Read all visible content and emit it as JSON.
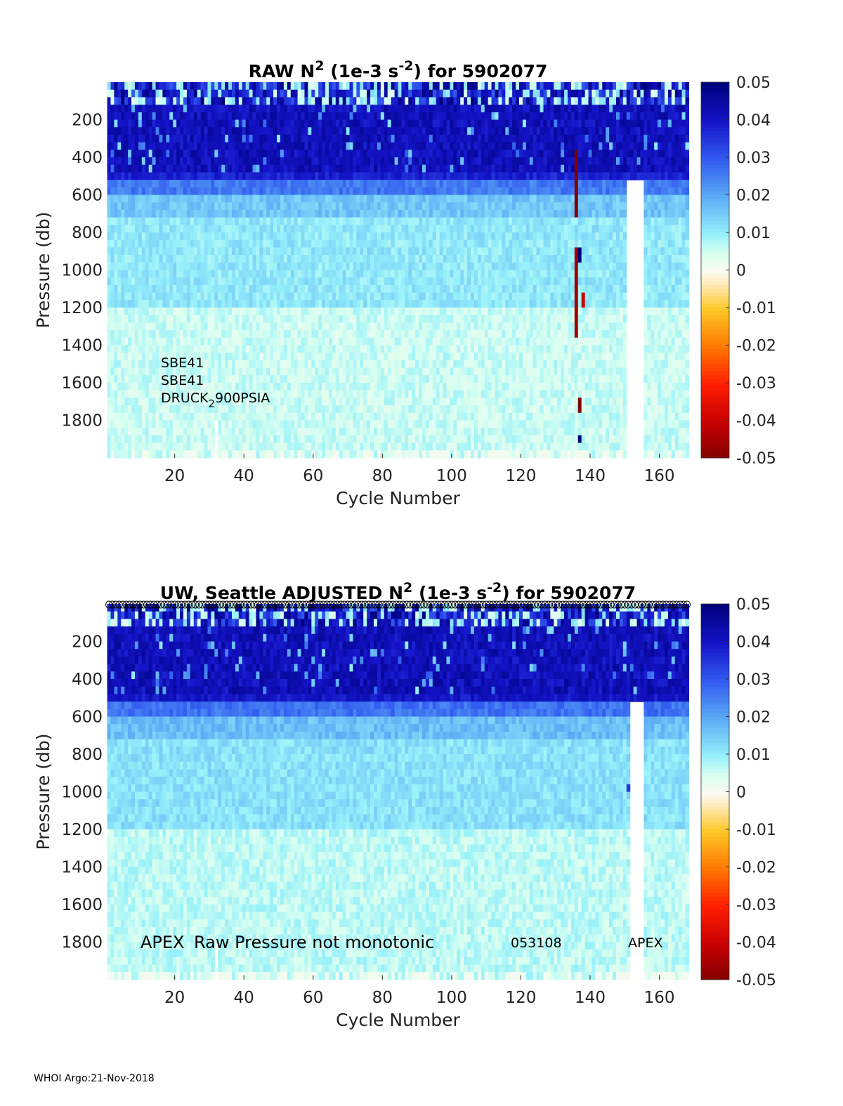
{
  "footer": "WHOI Argo:21-Nov-2018",
  "chart_data": [
    {
      "type": "heatmap",
      "title_main": "RAW N",
      "title_sup1": "2",
      "title_mid": " (1e-3 s",
      "title_sup2": "-2",
      "title_end": ") for 5902077",
      "title_prefix": "",
      "xlabel": "Cycle Number",
      "ylabel": "Pressure (db)",
      "xlim": [
        1,
        168
      ],
      "ylim": [
        2000,
        0
      ],
      "xticks": [
        20,
        40,
        60,
        80,
        100,
        120,
        140,
        160
      ],
      "yticks": [
        200,
        400,
        600,
        800,
        1000,
        1200,
        1400,
        1600,
        1800
      ],
      "clim": [
        -0.05,
        0.05
      ],
      "colorbar_ticks": [
        "0.05",
        "0.04",
        "0.03",
        "0.02",
        "0.01",
        "0",
        "-0.01",
        "-0.02",
        "-0.03",
        "-0.04",
        "-0.05"
      ],
      "depth_bands": [
        {
          "from": 0,
          "to": 90,
          "value": 0.03
        },
        {
          "from": 90,
          "to": 450,
          "value": 0.046
        },
        {
          "from": 450,
          "to": 520,
          "value": 0.038
        },
        {
          "from": 520,
          "to": 600,
          "value": 0.026
        },
        {
          "from": 600,
          "to": 700,
          "value": 0.016
        },
        {
          "from": 700,
          "to": 1200,
          "value": 0.011
        },
        {
          "from": 1200,
          "to": 2000,
          "value": 0.006
        }
      ],
      "missing": [
        {
          "cycles": [
            151,
            155
          ],
          "from": 500,
          "to": 2000
        },
        {
          "cycles": [
            32,
            32
          ],
          "from": 1800,
          "to": 2000
        }
      ],
      "anomalies": [
        {
          "cycle": 136,
          "from": 350,
          "to": 700,
          "value": -0.05
        },
        {
          "cycle": 136,
          "from": 850,
          "to": 1350,
          "value": -0.045
        },
        {
          "cycle": 136,
          "from": 950,
          "to": 1050,
          "value": 0.05
        },
        {
          "cycle": 137,
          "from": 1650,
          "to": 1750,
          "value": -0.05
        },
        {
          "cycle": 137,
          "from": 1850,
          "to": 1920,
          "value": 0.05
        },
        {
          "cycle": 138,
          "from": 1100,
          "to": 1200,
          "value": -0.04
        },
        {
          "cycle": 137,
          "from": 850,
          "to": 950,
          "value": 0.05
        }
      ],
      "annotations": [
        "SBE41",
        "SBE41",
        "DRUCK",
        "2",
        "900PSIA"
      ],
      "qc_markers": false
    },
    {
      "type": "heatmap",
      "title_prefix": "UW, Seattle  ",
      "title_main": "ADJUSTED N",
      "title_sup1": "2",
      "title_mid": " (1e-3 s",
      "title_sup2": "-2",
      "title_end": ") for 5902077",
      "xlabel": "Cycle Number",
      "ylabel": "Pressure (db)",
      "xlim": [
        1,
        168
      ],
      "ylim": [
        2000,
        0
      ],
      "xticks": [
        20,
        40,
        60,
        80,
        100,
        120,
        140,
        160
      ],
      "yticks": [
        200,
        400,
        600,
        800,
        1000,
        1200,
        1400,
        1600,
        1800
      ],
      "clim": [
        -0.05,
        0.05
      ],
      "colorbar_ticks": [
        "0.05",
        "0.04",
        "0.03",
        "0.02",
        "0.01",
        "0",
        "-0.01",
        "-0.02",
        "-0.03",
        "-0.04",
        "-0.05"
      ],
      "depth_bands": [
        {
          "from": 0,
          "to": 90,
          "value": 0.03
        },
        {
          "from": 90,
          "to": 450,
          "value": 0.046
        },
        {
          "from": 450,
          "to": 520,
          "value": 0.04
        },
        {
          "from": 520,
          "to": 600,
          "value": 0.027
        },
        {
          "from": 600,
          "to": 700,
          "value": 0.017
        },
        {
          "from": 700,
          "to": 1200,
          "value": 0.012
        },
        {
          "from": 1200,
          "to": 2000,
          "value": 0.007
        }
      ],
      "missing": [
        {
          "cycles": [
            152,
            155
          ],
          "from": 500,
          "to": 2000
        },
        {
          "cycles": [
            32,
            32
          ],
          "from": 1800,
          "to": 2000
        }
      ],
      "anomalies": [
        {
          "cycle": 151,
          "from": 950,
          "to": 1000,
          "value": 0.035
        }
      ],
      "annotations": [
        "APEX",
        "Raw Pressure not monotonic",
        "053108",
        "APEX"
      ],
      "qc_markers": true
    }
  ]
}
